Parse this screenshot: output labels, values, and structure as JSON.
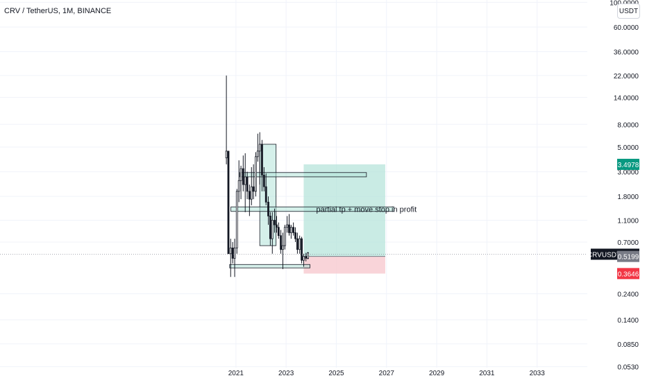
{
  "header": {
    "symbol_title": "CRV / TetherUS, 1M, BINANCE",
    "currency_label": "USDT"
  },
  "colors": {
    "up": "#ffffff",
    "candle_border": "#131722",
    "profit_zone": "#b2e3d9",
    "loss_zone": "#f7c9cf",
    "zone_box": "#b2e3d9",
    "target_badge": "#089981",
    "stop_badge": "#f23645",
    "current_badge": "#131722",
    "entry_badge": "#787b86",
    "grid": "#f0f3fa"
  },
  "chart_data": {
    "type": "candlestick",
    "symbol": "CRVUSDT",
    "interval": "1M",
    "scale": "log",
    "y_ticks": [
      100,
      60,
      36,
      22,
      14,
      8,
      5,
      3,
      1.8,
      1.1,
      0.7,
      0.24,
      0.14,
      0.085,
      0.053
    ],
    "y_tick_labels": [
      "100.0000",
      "60.0000",
      "36.0000",
      "22.0000",
      "14.0000",
      "8.0000",
      "5.0000",
      "3.0000",
      "1.8000",
      "1.1000",
      "0.7000",
      "0.2400",
      "0.1400",
      "0.0850",
      "0.0530"
    ],
    "x_ticks": [
      2021,
      2023,
      2025,
      2027,
      2029,
      2031,
      2033
    ],
    "x_tick_labels": [
      "2021",
      "2023",
      "2025",
      "2027",
      "2029",
      "2031",
      "2033"
    ],
    "x_range": [
      2011.6,
      2035.0
    ],
    "y_range": [
      0.052,
      105
    ],
    "candles": [
      {
        "t": 2020.62,
        "o": 4.0,
        "h": 22.0,
        "l": 3.5,
        "c": 4.6
      },
      {
        "t": 2020.7,
        "o": 4.6,
        "h": 4.6,
        "l": 0.55,
        "c": 0.55
      },
      {
        "t": 2020.79,
        "o": 0.55,
        "h": 0.75,
        "l": 0.34,
        "c": 0.62
      },
      {
        "t": 2020.87,
        "o": 0.62,
        "h": 0.7,
        "l": 0.45,
        "c": 0.5
      },
      {
        "t": 2020.95,
        "o": 0.5,
        "h": 0.75,
        "l": 0.34,
        "c": 0.62
      },
      {
        "t": 2021.04,
        "o": 0.62,
        "h": 2.1,
        "l": 0.55,
        "c": 2.0
      },
      {
        "t": 2021.12,
        "o": 2.0,
        "h": 3.8,
        "l": 1.6,
        "c": 2.5
      },
      {
        "t": 2021.2,
        "o": 2.5,
        "h": 3.4,
        "l": 1.7,
        "c": 3.2
      },
      {
        "t": 2021.29,
        "o": 3.2,
        "h": 4.2,
        "l": 2.0,
        "c": 2.3
      },
      {
        "t": 2021.37,
        "o": 2.3,
        "h": 4.4,
        "l": 1.3,
        "c": 2.7
      },
      {
        "t": 2021.45,
        "o": 2.7,
        "h": 3.0,
        "l": 1.7,
        "c": 2.0
      },
      {
        "t": 2021.54,
        "o": 2.0,
        "h": 2.3,
        "l": 1.2,
        "c": 1.7
      },
      {
        "t": 2021.62,
        "o": 1.7,
        "h": 3.3,
        "l": 1.5,
        "c": 2.2
      },
      {
        "t": 2021.7,
        "o": 2.2,
        "h": 3.5,
        "l": 1.7,
        "c": 2.0
      },
      {
        "t": 2021.79,
        "o": 2.0,
        "h": 4.5,
        "l": 1.8,
        "c": 4.1
      },
      {
        "t": 2021.87,
        "o": 4.1,
        "h": 6.6,
        "l": 3.7,
        "c": 4.6
      },
      {
        "t": 2021.95,
        "o": 4.6,
        "h": 6.8,
        "l": 2.3,
        "c": 5.3
      },
      {
        "t": 2022.04,
        "o": 5.3,
        "h": 5.8,
        "l": 2.0,
        "c": 2.8
      },
      {
        "t": 2022.12,
        "o": 2.8,
        "h": 3.3,
        "l": 2.0,
        "c": 2.2
      },
      {
        "t": 2022.2,
        "o": 2.2,
        "h": 2.9,
        "l": 1.5,
        "c": 1.6
      },
      {
        "t": 2022.29,
        "o": 1.6,
        "h": 1.8,
        "l": 1.0,
        "c": 1.2
      },
      {
        "t": 2022.37,
        "o": 1.2,
        "h": 1.3,
        "l": 0.65,
        "c": 0.75
      },
      {
        "t": 2022.45,
        "o": 0.75,
        "h": 1.3,
        "l": 0.55,
        "c": 1.1
      },
      {
        "t": 2022.54,
        "o": 1.1,
        "h": 1.4,
        "l": 0.85,
        "c": 1.0
      },
      {
        "t": 2022.62,
        "o": 1.0,
        "h": 1.2,
        "l": 0.85,
        "c": 0.95
      },
      {
        "t": 2022.7,
        "o": 0.95,
        "h": 1.05,
        "l": 0.75,
        "c": 0.8
      },
      {
        "t": 2022.79,
        "o": 0.8,
        "h": 0.9,
        "l": 0.55,
        "c": 0.6
      },
      {
        "t": 2022.87,
        "o": 0.6,
        "h": 0.85,
        "l": 0.4,
        "c": 0.65
      },
      {
        "t": 2022.95,
        "o": 0.65,
        "h": 1.0,
        "l": 0.6,
        "c": 0.95
      },
      {
        "t": 2023.04,
        "o": 0.95,
        "h": 1.2,
        "l": 0.85,
        "c": 1.0
      },
      {
        "t": 2023.12,
        "o": 1.0,
        "h": 1.25,
        "l": 0.8,
        "c": 0.85
      },
      {
        "t": 2023.2,
        "o": 0.85,
        "h": 1.0,
        "l": 0.75,
        "c": 0.95
      },
      {
        "t": 2023.29,
        "o": 0.95,
        "h": 1.05,
        "l": 0.8,
        "c": 0.85
      },
      {
        "t": 2023.37,
        "o": 0.85,
        "h": 0.95,
        "l": 0.7,
        "c": 0.75
      },
      {
        "t": 2023.45,
        "o": 0.75,
        "h": 0.85,
        "l": 0.55,
        "c": 0.6
      },
      {
        "t": 2023.54,
        "o": 0.6,
        "h": 0.8,
        "l": 0.55,
        "c": 0.75
      },
      {
        "t": 2023.62,
        "o": 0.75,
        "h": 0.78,
        "l": 0.45,
        "c": 0.48
      },
      {
        "t": 2023.7,
        "o": 0.48,
        "h": 0.55,
        "l": 0.42,
        "c": 0.52
      },
      {
        "t": 2023.79,
        "o": 0.52,
        "h": 0.56,
        "l": 0.47,
        "c": 0.5
      },
      {
        "t": 2023.87,
        "o": 0.5,
        "h": 0.57,
        "l": 0.49,
        "c": 0.56
      }
    ],
    "long_position": {
      "x_start": 2023.7,
      "x_end": 2026.95,
      "target": 3.4978,
      "entry": 0.5199,
      "stop": 0.3646
    },
    "rectangles": [
      {
        "x1": 2021.95,
        "x2": 2022.6,
        "y1": 0.65,
        "y2": 5.3
      },
      {
        "x1": 2021.15,
        "x2": 2026.2,
        "y1": 2.7,
        "y2": 2.95
      },
      {
        "x1": 2020.8,
        "x2": 2027.3,
        "y1": 1.32,
        "y2": 1.45
      },
      {
        "x1": 2020.75,
        "x2": 2023.95,
        "y1": 0.41,
        "y2": 0.44
      }
    ],
    "annotation": "partial tp + move stop in profit",
    "last_price": 0.5444,
    "price_labels": {
      "target": "3.4978",
      "current_symbol": "CRVUSDT",
      "current": "0.5444",
      "entry": "0.5199",
      "stop": "0.3646"
    }
  }
}
